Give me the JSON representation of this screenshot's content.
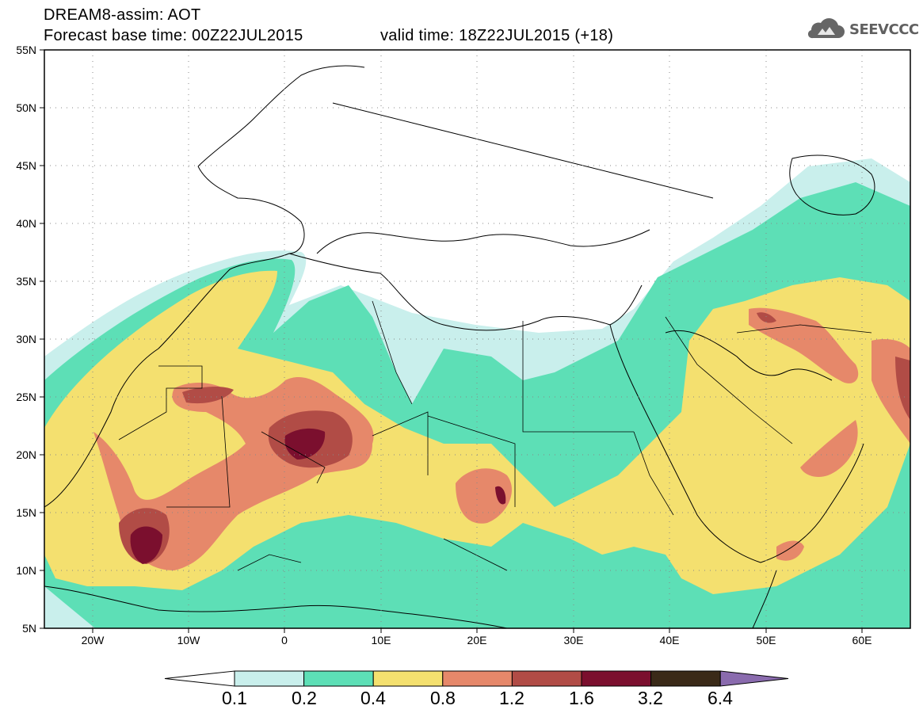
{
  "header": {
    "line1": "DREAM8-assim: AOT",
    "line2": "Forecast base time: 00Z22JUL2015",
    "valid": "valid time: 18Z22JUL2015 (+18)"
  },
  "logo": {
    "icon": "cloud-icon",
    "text": "SEEVCCC"
  },
  "axes": {
    "lat_labels": [
      "55N",
      "50N",
      "45N",
      "40N",
      "35N",
      "30N",
      "25N",
      "20N",
      "15N",
      "10N",
      "5N"
    ],
    "lon_labels": [
      "20W",
      "10W",
      "0",
      "10E",
      "20E",
      "30E",
      "40E",
      "50E",
      "60E"
    ],
    "lat_range": [
      5,
      55
    ],
    "lon_range": [
      -25,
      65
    ],
    "grid": "dotted"
  },
  "colorbar": {
    "labels": [
      "0.1",
      "0.2",
      "0.4",
      "0.8",
      "1.2",
      "1.6",
      "3.2",
      "6.4"
    ],
    "colors": [
      "#ffffff",
      "#c9efec",
      "#5ddfb6",
      "#f4e06f",
      "#e6886a",
      "#b14c46",
      "#7b0f2e",
      "#3a2a18",
      "#8a6bae"
    ]
  }
}
